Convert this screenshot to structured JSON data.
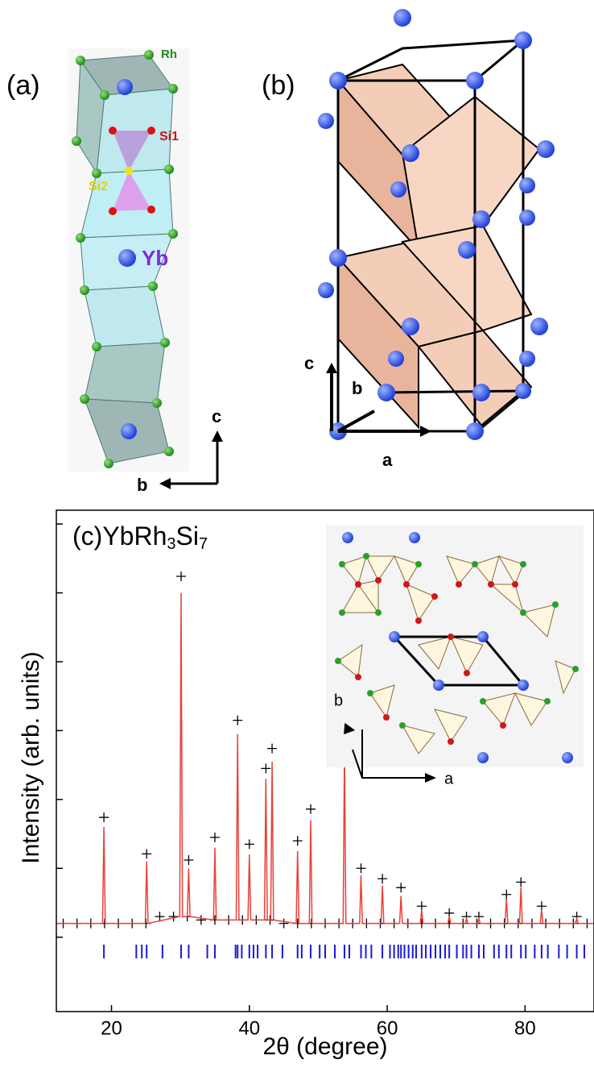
{
  "figure": {
    "a": {
      "label": "(a)",
      "rh": "Rh",
      "si1": "Si1",
      "si2": "Si2",
      "yb": "Yb",
      "axis_c": "c",
      "axis_b": "b"
    },
    "b": {
      "label": "(b)",
      "axis_c": "c",
      "axis_b": "b",
      "axis_a": "a"
    },
    "inset": {
      "axis_b": "b",
      "axis_a": "a"
    }
  },
  "chart_data": {
    "type": "rietveld",
    "panel": "(c)",
    "formula": [
      "YbRh",
      "3",
      "Si",
      "7"
    ],
    "x_label": "2θ  (degree)",
    "y_label": "Intensity (arb. units)",
    "xlim": [
      12,
      90
    ],
    "xticks": [
      20,
      40,
      60,
      80
    ],
    "ylim": [
      -1.08,
      6.2
    ],
    "yticks": [
      0,
      1,
      2,
      3,
      4,
      5,
      6
    ],
    "series": [
      {
        "color": "#000000",
        "marker": "+",
        "x": [
          18.9,
          25.1,
          30.1,
          31.2,
          35.0,
          38.3,
          40.0,
          42.4,
          43.3,
          47.0,
          48.9,
          53.8,
          56.2,
          59.3,
          62.0,
          65.0,
          69.0,
          71.5,
          73.3,
          77.3,
          79.4,
          82.4,
          87.5,
          13,
          15,
          17,
          19,
          21,
          23,
          25,
          27,
          29,
          31,
          33,
          35,
          37,
          39,
          41,
          43,
          45,
          47,
          49,
          51,
          53,
          55,
          57,
          59,
          61,
          63,
          65,
          67,
          69,
          71,
          73,
          75,
          77,
          79,
          81,
          83,
          85,
          87,
          89
        ],
        "values": [
          1.74,
          1.21,
          5.24,
          1.12,
          1.45,
          3.15,
          1.35,
          2.45,
          2.74,
          1.4,
          1.86,
          2.92,
          1.0,
          0.85,
          0.72,
          0.45,
          0.35,
          0.3,
          0.3,
          0.62,
          0.8,
          0.45,
          0.3,
          0.2,
          0.2,
          0.2,
          0.2,
          0.2,
          0.2,
          0.2,
          0.3,
          0.3,
          0.3,
          0.25,
          0.25,
          0.25,
          0.25,
          0.25,
          0.25,
          0.2,
          0.2,
          0.2,
          0.2,
          0.2,
          0.2,
          0.2,
          0.2,
          0.2,
          0.2,
          0.2,
          0.2,
          0.2,
          0.2,
          0.2,
          0.2,
          0.2,
          0.2,
          0.2,
          0.2,
          0.2,
          0.2,
          0.2
        ]
      },
      {
        "color": "#e8413a",
        "marker": "line",
        "x": [
          12,
          18.7,
          18.9,
          19.1,
          24.9,
          25.1,
          25.3,
          29.9,
          30.1,
          30.3,
          31.0,
          31.2,
          31.4,
          34.8,
          35.0,
          35.2,
          38.1,
          38.3,
          38.5,
          39.8,
          40.0,
          40.2,
          42.2,
          42.4,
          42.6,
          43.1,
          43.3,
          43.5,
          46.8,
          47.0,
          47.2,
          48.7,
          48.9,
          49.1,
          53.6,
          53.8,
          54.0,
          56.0,
          56.2,
          56.4,
          59.1,
          59.3,
          59.5,
          61.8,
          62.0,
          62.2,
          64.8,
          65.0,
          65.2,
          68.8,
          69.0,
          69.2,
          71.3,
          71.5,
          71.7,
          73.1,
          73.3,
          73.5,
          77.1,
          77.3,
          77.5,
          79.2,
          79.4,
          79.6,
          82.2,
          82.4,
          82.6,
          87.3,
          87.5,
          87.7,
          90
        ],
        "values": [
          0.2,
          0.2,
          1.6,
          0.2,
          0.2,
          1.1,
          0.2,
          0.3,
          5.0,
          0.3,
          0.3,
          1.0,
          0.3,
          0.25,
          1.3,
          0.25,
          0.25,
          2.95,
          0.25,
          0.25,
          1.2,
          0.25,
          0.25,
          2.3,
          0.25,
          0.25,
          2.55,
          0.25,
          0.2,
          1.25,
          0.2,
          0.2,
          1.7,
          0.2,
          0.2,
          2.75,
          0.2,
          0.2,
          0.9,
          0.2,
          0.2,
          0.75,
          0.2,
          0.2,
          0.6,
          0.2,
          0.2,
          0.4,
          0.2,
          0.2,
          0.3,
          0.2,
          0.2,
          0.27,
          0.2,
          0.2,
          0.27,
          0.2,
          0.2,
          0.55,
          0.2,
          0.2,
          0.72,
          0.2,
          0.2,
          0.4,
          0.2,
          0.2,
          0.27,
          0.2,
          0.2
        ]
      }
    ],
    "bragg_color": "#1a1adb",
    "bragg_positions": [
      18.9,
      23.6,
      24.4,
      25.1,
      27.4,
      30.1,
      31.2,
      33.9,
      35.0,
      38.0,
      38.3,
      38.9,
      40.0,
      40.6,
      41.2,
      42.4,
      43.3,
      44.8,
      47.0,
      47.6,
      48.9,
      50.2,
      51.0,
      52.4,
      53.8,
      54.5,
      56.2,
      56.9,
      57.7,
      59.3,
      60.4,
      61.0,
      61.6,
      62.0,
      62.5,
      63.1,
      63.7,
      64.2,
      65.0,
      65.6,
      66.3,
      67.0,
      67.7,
      68.4,
      69.0,
      70.1,
      71.0,
      71.5,
      72.2,
      73.3,
      74.0,
      75.5,
      76.2,
      77.3,
      78.0,
      79.4,
      80.1,
      81.4,
      82.4,
      83.3,
      84.9,
      86.1,
      87.5,
      88.6
    ]
  }
}
